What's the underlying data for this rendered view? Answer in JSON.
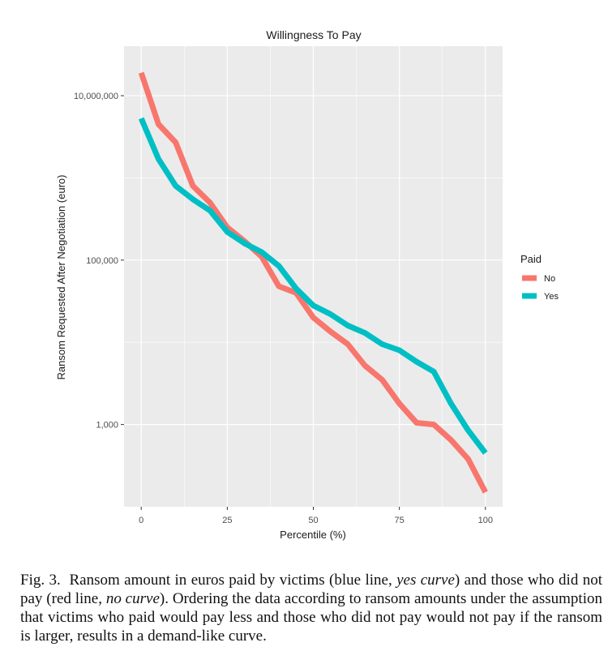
{
  "chart_data": {
    "type": "line",
    "title": "Willingness To Pay",
    "xlabel": "Percentile (%)",
    "ylabel": "Ransom Requested After Negotiation (euro)",
    "x_ticks": [
      0,
      25,
      50,
      75,
      100
    ],
    "x_tick_labels": [
      "0",
      "25",
      "50",
      "75",
      "100"
    ],
    "xlim": [
      -5,
      105
    ],
    "y_scale": "log10",
    "y_ticks": [
      1000,
      100000,
      10000000
    ],
    "y_tick_labels": [
      "1,000",
      "100,000",
      "10,000,000"
    ],
    "ylim": [
      100,
      40000000
    ],
    "grid": true,
    "legend": {
      "title": "Paid",
      "position": "right"
    },
    "x": [
      0,
      5,
      10,
      15,
      20,
      25,
      30,
      35,
      40,
      45,
      50,
      55,
      60,
      65,
      70,
      75,
      80,
      85,
      90,
      95,
      100
    ],
    "series": [
      {
        "name": "No",
        "color": "#F8766D",
        "values": [
          19000000,
          4500000,
          2700000,
          800000,
          500000,
          250000,
          170000,
          110000,
          48000,
          40000,
          20000,
          13500,
          9500,
          5200,
          3500,
          1800,
          1050,
          1000,
          650,
          380,
          150
        ]
      },
      {
        "name": "Yes",
        "color": "#00BFC4",
        "values": [
          5300000,
          1700000,
          800000,
          550000,
          400000,
          220000,
          160000,
          125000,
          85000,
          45000,
          28000,
          22000,
          16000,
          13000,
          9500,
          8000,
          5800,
          4400,
          1800,
          850,
          450
        ]
      }
    ]
  },
  "caption": {
    "label": "Fig. 3.",
    "before_yes": "Ransom amount in euros paid by victims (blue line, ",
    "yes_curve": "yes curve",
    "middle": ") and those who did not pay (red line, ",
    "no_curve": "no curve",
    "after": "). Ordering the data according to ransom amounts under the assumption that victims who paid would pay less and those who did not pay would not pay if the ransom is larger, results in a demand-like curve."
  }
}
